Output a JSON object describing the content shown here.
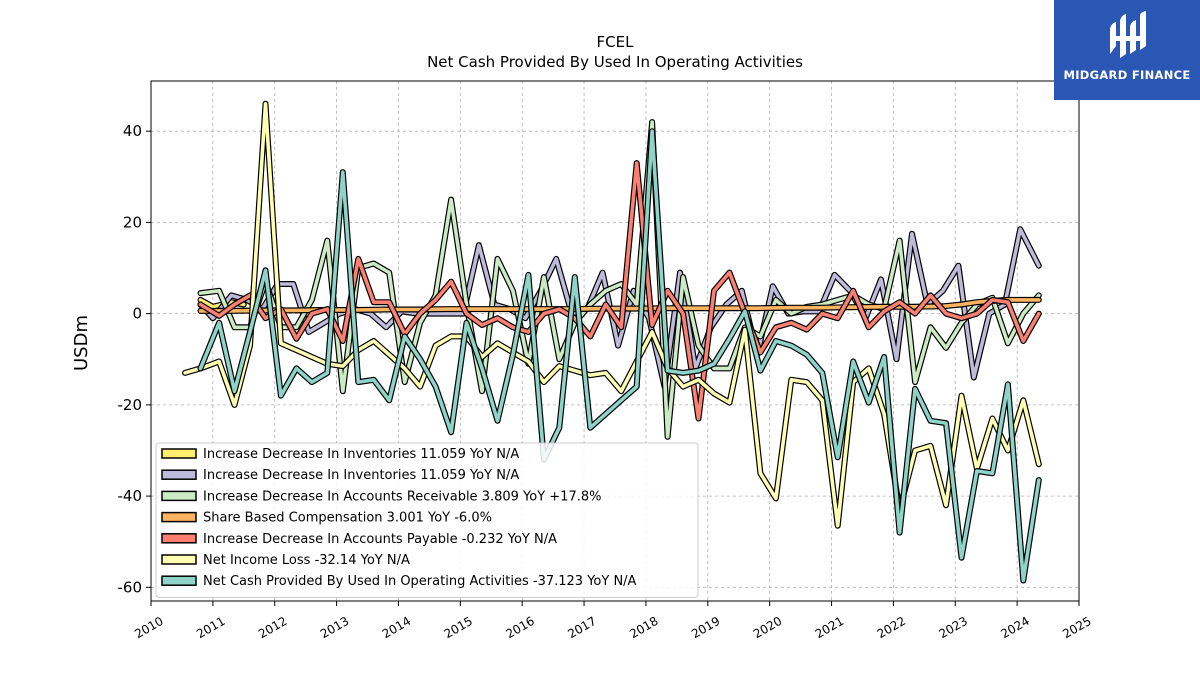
{
  "brand": {
    "name": "MIDGARD FINANCE",
    "color": "#2a57b4"
  },
  "chart_data": {
    "type": "line",
    "title": "FCEL",
    "subtitle": "Net Cash Provided By Used In Operating Activities",
    "ylabel": "USDm",
    "xlabel": "",
    "xlim": [
      2010,
      2025
    ],
    "ylim": [
      -63,
      51
    ],
    "xticks": [
      2010,
      2011,
      2012,
      2013,
      2014,
      2015,
      2016,
      2017,
      2018,
      2019,
      2020,
      2021,
      2022,
      2023,
      2024,
      2025
    ],
    "yticks": [
      -60,
      -40,
      -20,
      0,
      20,
      40
    ],
    "grid": true,
    "legend_position": "lower-left",
    "series": [
      {
        "name": "Increase Decrease In Inventories",
        "legend": "Increase Decrease In Inventories  11.059 YoY N/A",
        "color": "#ffed6f",
        "x": [
          2010.8,
          2011.0,
          2011.3,
          2011.5
        ],
        "y": [
          3.0,
          1.5,
          2.5,
          2.0
        ]
      },
      {
        "name": "Increase Decrease In Inventories",
        "legend": "Increase Decrease In Inventories  11.059 YoY N/A",
        "color": "#bebada",
        "x": [
          2010.8,
          2011.0,
          2011.3,
          2011.55,
          2011.8,
          2012.05,
          2012.3,
          2012.55,
          2012.8,
          2013.05,
          2013.3,
          2013.55,
          2013.8,
          2014.05,
          2014.3,
          2014.55,
          2014.8,
          2015.05,
          2015.3,
          2015.55,
          2015.8,
          2016.05,
          2016.3,
          2016.55,
          2016.8,
          2017.05,
          2017.3,
          2017.55,
          2017.8,
          2018.05,
          2018.3,
          2018.55,
          2018.8,
          2019.05,
          2019.3,
          2019.55,
          2019.8,
          2020.05,
          2020.3,
          2020.55,
          2020.8,
          2021.05,
          2021.3,
          2021.55,
          2021.8,
          2022.05,
          2022.3,
          2022.55,
          2022.8,
          2023.05,
          2023.3,
          2023.55,
          2023.8,
          2024.05,
          2024.35
        ],
        "y": [
          2.0,
          -1.0,
          4.0,
          3.0,
          1.0,
          6.5,
          6.5,
          -4.0,
          -2.0,
          0.0,
          1.0,
          0.0,
          -3.0,
          0.5,
          0.0,
          0.0,
          0.0,
          0.0,
          15.0,
          2.0,
          1.0,
          -1.0,
          5.0,
          12.0,
          0.0,
          1.0,
          9.0,
          -7.0,
          5.0,
          -1.0,
          -16.0,
          9.0,
          -12.0,
          -3.0,
          2.0,
          5.0,
          -9.0,
          6.0,
          0.0,
          0.5,
          0.5,
          8.5,
          5.0,
          -1.0,
          7.5,
          -10.0,
          17.5,
          2.0,
          5.0,
          10.5,
          -14.0,
          0.0,
          2.0,
          18.5,
          10.5
        ]
      },
      {
        "name": "Increase Decrease In Accounts Receivable",
        "legend": "Increase Decrease In Accounts Receivable  3.809 YoY +17.8%",
        "color": "#ccebc5",
        "x": [
          2010.8,
          2011.1,
          2011.35,
          2011.6,
          2011.85,
          2012.1,
          2012.35,
          2012.6,
          2012.85,
          2013.1,
          2013.35,
          2013.6,
          2013.85,
          2014.1,
          2014.35,
          2014.6,
          2014.85,
          2015.1,
          2015.35,
          2015.6,
          2015.85,
          2016.1,
          2016.35,
          2016.6,
          2016.85,
          2017.1,
          2017.35,
          2017.6,
          2017.85,
          2018.1,
          2018.35,
          2018.6,
          2018.85,
          2019.1,
          2019.35,
          2019.6,
          2019.85,
          2020.1,
          2020.35,
          2020.6,
          2020.85,
          2021.1,
          2021.35,
          2021.6,
          2021.85,
          2022.1,
          2022.35,
          2022.6,
          2022.85,
          2023.1,
          2023.35,
          2023.6,
          2023.85,
          2024.1,
          2024.35
        ],
        "y": [
          4.5,
          5.0,
          -3.0,
          -3.0,
          7.0,
          -3.0,
          -3.0,
          3.0,
          16.0,
          -17.0,
          10.0,
          11.0,
          9.0,
          -15.0,
          -2.0,
          4.0,
          25.0,
          2.0,
          -17.0,
          12.0,
          5.0,
          -11.0,
          8.0,
          -10.0,
          -2.0,
          2.0,
          5.0,
          6.5,
          2.0,
          42.0,
          -27.0,
          8.0,
          -7.0,
          -12.0,
          -12.0,
          -3.0,
          -5.0,
          3.0,
          0.0,
          1.5,
          2.0,
          3.0,
          4.0,
          2.0,
          1.0,
          16.0,
          -15.0,
          -3.0,
          -7.5,
          -2.0,
          2.0,
          3.5,
          -6.5,
          0.0,
          4.0
        ]
      },
      {
        "name": "Share Based Compensation",
        "legend": "Share Based Compensation  3.001 YoY -6.0%",
        "color": "#fdb462",
        "x": [
          2010.8,
          2011.3,
          2011.8,
          2012.3,
          2012.8,
          2013.3,
          2013.8,
          2014.3,
          2014.8,
          2015.3,
          2015.8,
          2016.3,
          2016.8,
          2017.3,
          2017.8,
          2018.3,
          2018.8,
          2019.3,
          2019.8,
          2020.3,
          2020.8,
          2021.3,
          2021.8,
          2022.3,
          2022.8,
          2023.1,
          2023.35,
          2023.6,
          2023.85,
          2024.1,
          2024.35
        ],
        "y": [
          0.6,
          0.6,
          0.7,
          0.7,
          0.8,
          0.8,
          0.9,
          0.9,
          1.0,
          1.0,
          1.0,
          1.0,
          1.0,
          1.1,
          1.1,
          1.2,
          1.2,
          1.2,
          1.2,
          1.3,
          1.3,
          1.4,
          1.5,
          1.5,
          1.6,
          2.0,
          2.5,
          2.8,
          3.0,
          3.0,
          3.0
        ]
      },
      {
        "name": "Increase Decrease In Accounts Payable",
        "legend": "Increase Decrease In Accounts Payable  -0.232 YoY N/A",
        "color": "#fb8072",
        "x": [
          2010.8,
          2011.1,
          2011.35,
          2011.6,
          2011.85,
          2012.1,
          2012.35,
          2012.6,
          2012.85,
          2013.1,
          2013.35,
          2013.6,
          2013.85,
          2014.1,
          2014.35,
          2014.6,
          2014.85,
          2015.1,
          2015.35,
          2015.6,
          2015.85,
          2016.1,
          2016.35,
          2016.6,
          2016.85,
          2017.1,
          2017.35,
          2017.6,
          2017.85,
          2018.1,
          2018.35,
          2018.6,
          2018.85,
          2019.1,
          2019.35,
          2019.6,
          2019.85,
          2020.1,
          2020.35,
          2020.6,
          2020.85,
          2021.1,
          2021.35,
          2021.6,
          2021.85,
          2022.1,
          2022.35,
          2022.6,
          2022.85,
          2023.1,
          2023.35,
          2023.6,
          2023.85,
          2024.1,
          2024.35
        ],
        "y": [
          2.0,
          -0.5,
          2.0,
          4.0,
          -1.0,
          1.0,
          -5.5,
          0.0,
          1.0,
          -6.0,
          12.0,
          2.5,
          2.5,
          -4.5,
          0.0,
          3.0,
          7.0,
          0.0,
          -2.5,
          -1.0,
          -3.0,
          -4.0,
          0.0,
          1.0,
          -1.0,
          -5.0,
          2.0,
          -3.0,
          33.0,
          -2.5,
          5.0,
          0.0,
          -23.0,
          5.0,
          9.0,
          0.0,
          -8.5,
          -3.0,
          -2.0,
          -3.5,
          0.0,
          -1.0,
          5.0,
          -3.0,
          0.5,
          2.5,
          0.0,
          4.0,
          0.0,
          -1.0,
          0.0,
          3.0,
          2.5,
          -6.0,
          0.0
        ]
      },
      {
        "name": "Net Income Loss",
        "legend": "Net Income Loss  -32.14 YoY N/A",
        "color": "#ffffb3",
        "x": [
          2010.55,
          2010.8,
          2011.1,
          2011.35,
          2011.6,
          2011.85,
          2012.1,
          2012.35,
          2012.6,
          2012.85,
          2013.1,
          2013.35,
          2013.6,
          2013.85,
          2014.1,
          2014.35,
          2014.6,
          2014.85,
          2015.1,
          2015.35,
          2015.6,
          2015.85,
          2016.1,
          2016.35,
          2016.6,
          2016.85,
          2017.1,
          2017.35,
          2017.6,
          2017.85,
          2018.1,
          2018.35,
          2018.6,
          2018.85,
          2019.1,
          2019.35,
          2019.6,
          2019.85,
          2020.1,
          2020.35,
          2020.6,
          2020.85,
          2021.1,
          2021.35,
          2021.6,
          2021.85,
          2022.1,
          2022.35,
          2022.6,
          2022.85,
          2023.1,
          2023.35,
          2023.6,
          2023.85,
          2024.1,
          2024.35
        ],
        "y": [
          -13.0,
          -12.0,
          -10.5,
          -20.0,
          -7.0,
          46.0,
          -6.5,
          -8.0,
          -9.5,
          -11.0,
          -11.5,
          -8.0,
          -6.0,
          -9.0,
          -12.0,
          -16.0,
          -7.0,
          -5.0,
          -5.0,
          -9.5,
          -6.5,
          -8.5,
          -10.5,
          -15.0,
          -11.5,
          -12.5,
          -13.5,
          -13.0,
          -17.0,
          -10.5,
          -4.0,
          -12.0,
          -16.0,
          -14.5,
          -17.5,
          -19.5,
          -3.5,
          -35.0,
          -40.5,
          -14.5,
          -15.0,
          -19.0,
          -46.5,
          -15.0,
          -12.0,
          -22.0,
          -43.0,
          -30.0,
          -29.0,
          -42.0,
          -18.0,
          -34.0,
          -23.0,
          -30.0,
          -19.0,
          -33.0
        ]
      },
      {
        "name": "Net Cash Provided By Used In Operating Activities",
        "legend": "Net Cash Provided By Used In Operating Activities  -37.123 YoY N/A",
        "color": "#8dd3c7",
        "x": [
          2010.8,
          2011.1,
          2011.35,
          2011.6,
          2011.85,
          2012.1,
          2012.35,
          2012.6,
          2012.85,
          2013.1,
          2013.35,
          2013.6,
          2013.85,
          2014.1,
          2014.35,
          2014.6,
          2014.85,
          2015.1,
          2015.35,
          2015.6,
          2015.85,
          2016.1,
          2016.35,
          2016.6,
          2016.85,
          2017.1,
          2017.35,
          2017.6,
          2017.85,
          2018.1,
          2018.35,
          2018.6,
          2018.85,
          2019.1,
          2019.35,
          2019.6,
          2019.85,
          2020.1,
          2020.35,
          2020.6,
          2020.85,
          2021.1,
          2021.35,
          2021.6,
          2021.85,
          2022.1,
          2022.35,
          2022.6,
          2022.85,
          2023.1,
          2023.35,
          2023.6,
          2023.85,
          2024.1,
          2024.35
        ],
        "y": [
          -12.0,
          -2.0,
          -17.0,
          -4.0,
          9.5,
          -18.0,
          -12.0,
          -15.0,
          -13.0,
          31.0,
          -15.0,
          -14.5,
          -19.0,
          -5.0,
          -10.0,
          -16.0,
          -26.0,
          -2.0,
          -12.0,
          -23.5,
          -9.0,
          8.5,
          -32.0,
          -25.0,
          8.0,
          -25.0,
          -22.0,
          -19.0,
          -16.0,
          40.0,
          -12.5,
          -13.0,
          -12.5,
          -11.0,
          -5.5,
          0.5,
          -12.5,
          -6.0,
          -7.0,
          -9.0,
          -13.0,
          -31.5,
          -10.5,
          -19.5,
          -9.5,
          -48.0,
          -16.5,
          -23.5,
          -24.0,
          -53.5,
          -34.5,
          -35.0,
          -15.5,
          -58.5,
          -36.5
        ]
      }
    ]
  }
}
